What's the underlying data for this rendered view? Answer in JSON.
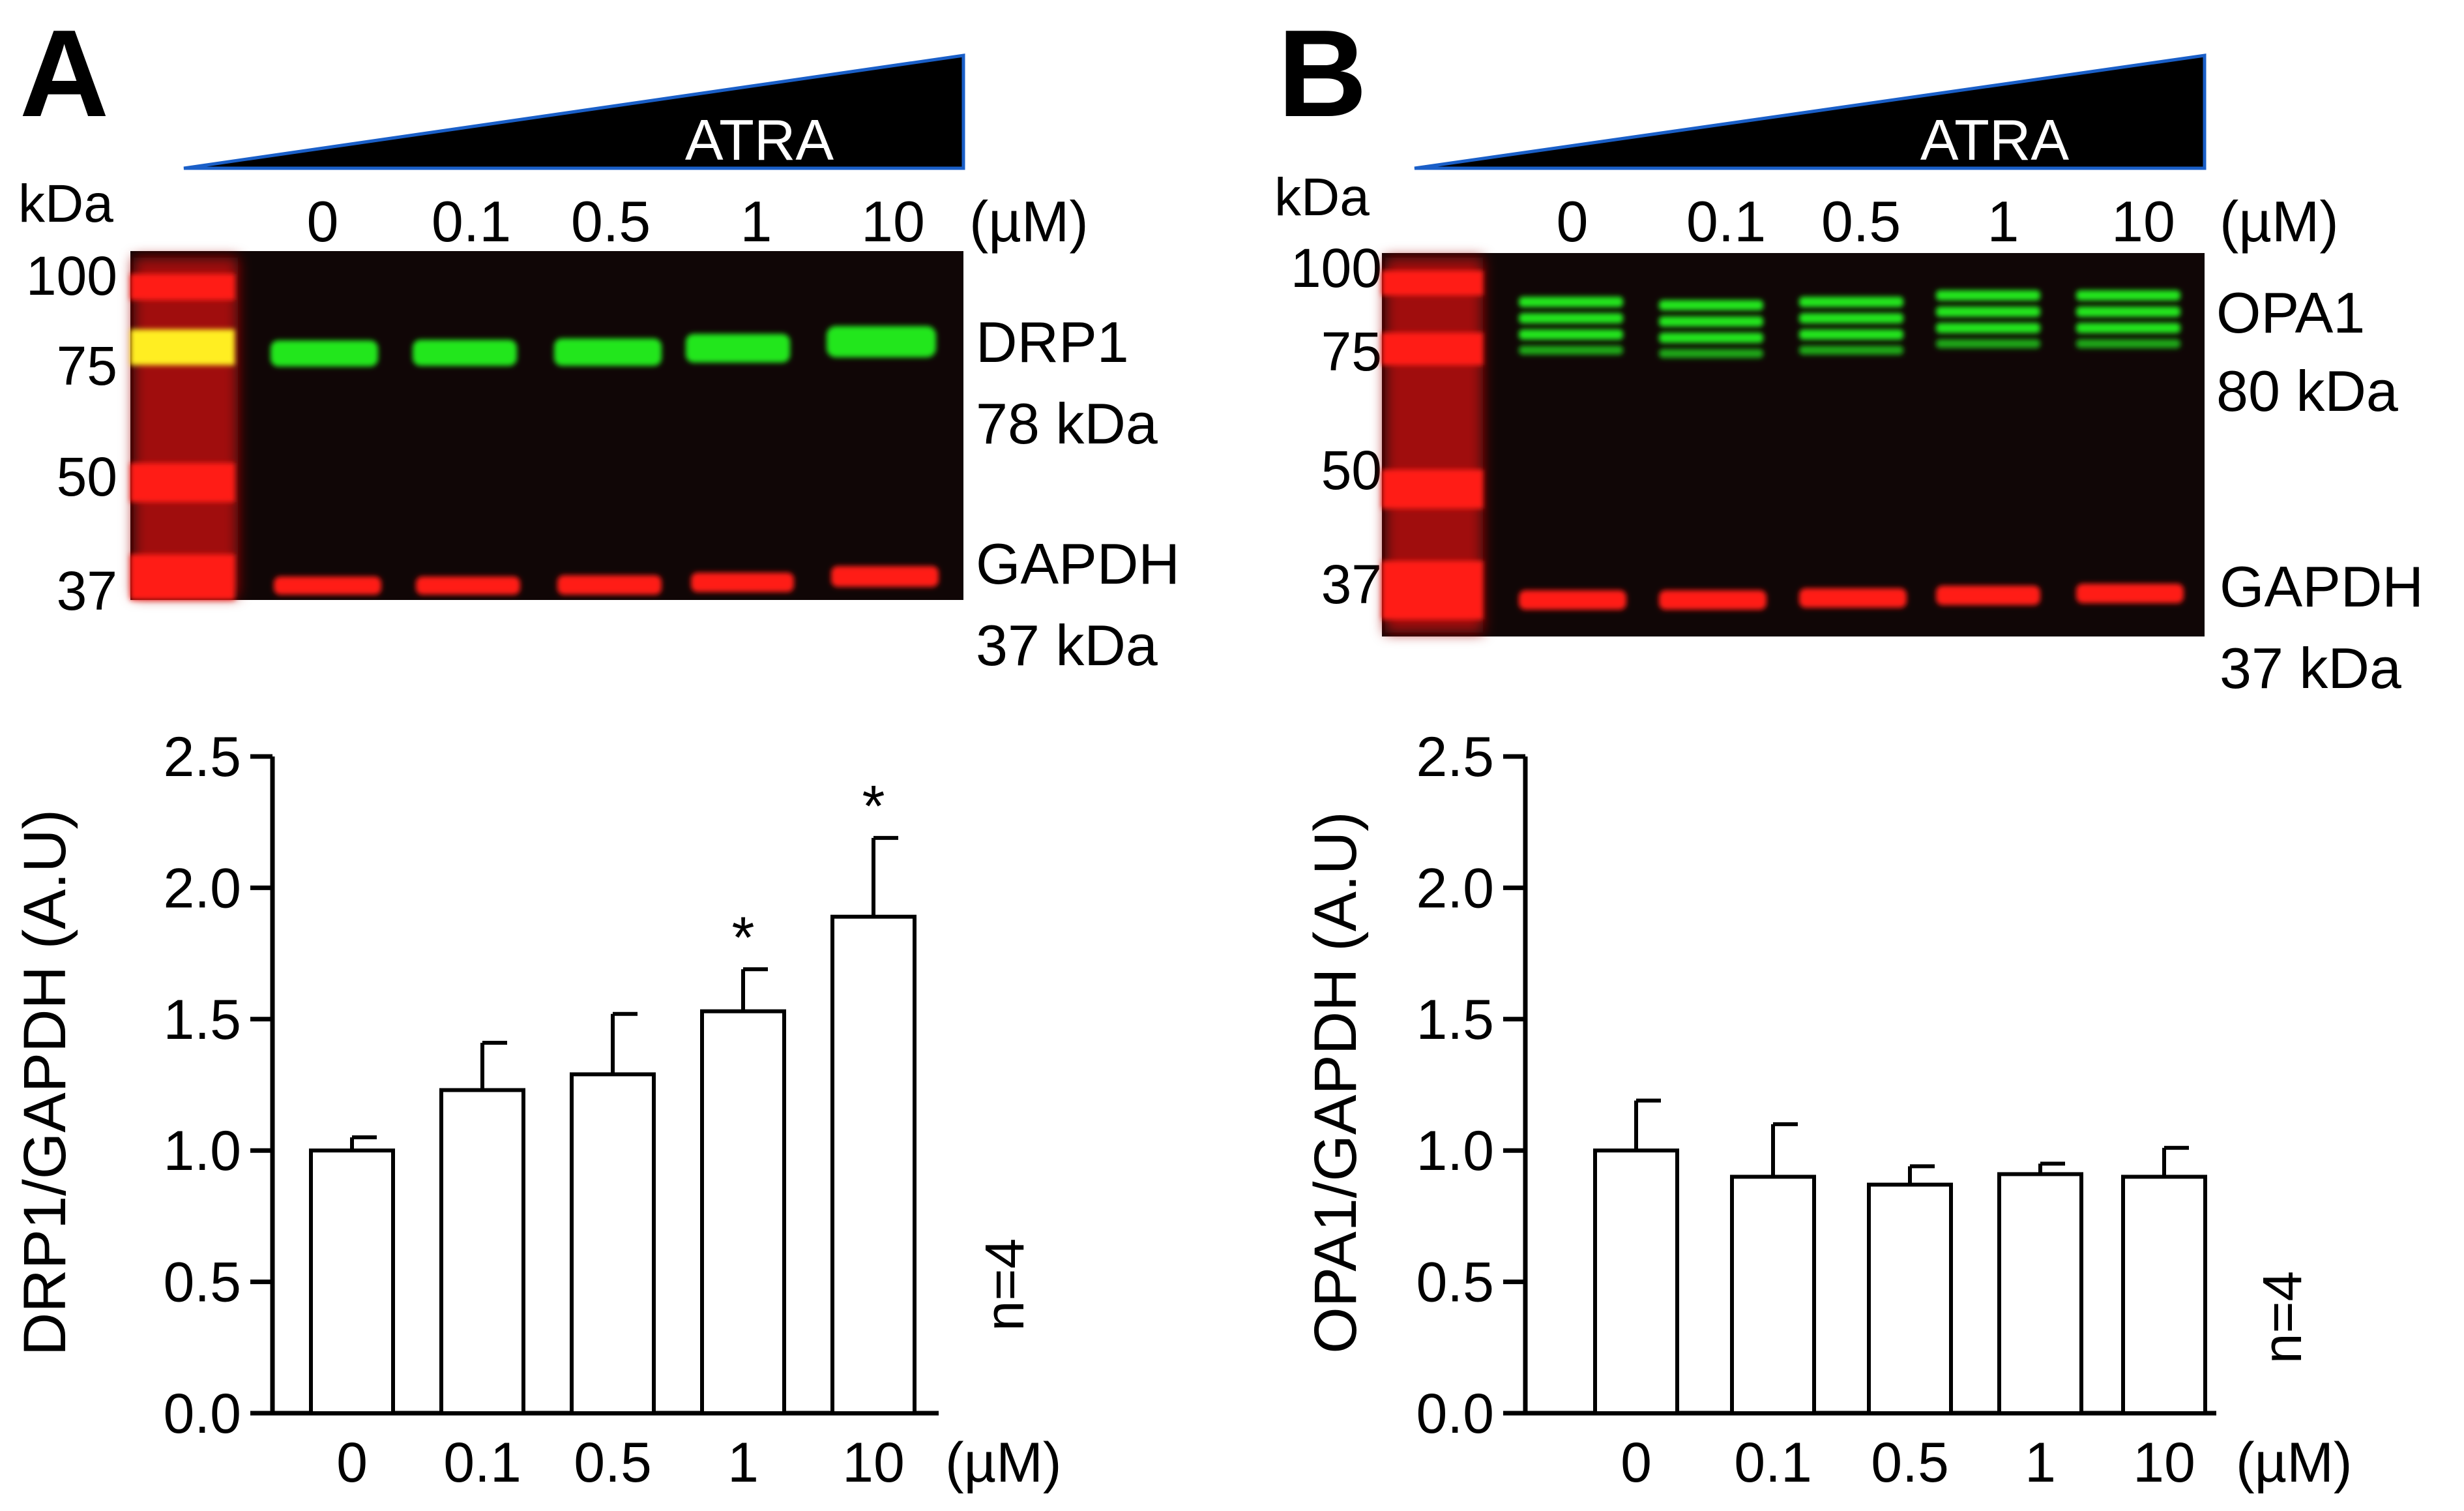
{
  "panels": [
    {
      "letter": "A",
      "treatment": "ATRA",
      "unit": "(µM)",
      "kda_label": "kDa",
      "concentrations": [
        "0",
        "0.1",
        "0.5",
        "1",
        "10"
      ],
      "markers": [
        "100",
        "75",
        "50",
        "37"
      ],
      "target_name": "DRP1",
      "target_size": "78 kDa",
      "loading_name": "GAPDH",
      "loading_size": "37 kDa",
      "n_label": "n=4"
    },
    {
      "letter": "B",
      "treatment": "ATRA",
      "unit": "(µM)",
      "kda_label": "kDa",
      "concentrations": [
        "0",
        "0.1",
        "0.5",
        "1",
        "10"
      ],
      "markers": [
        "100",
        "75",
        "50",
        "37"
      ],
      "target_name": "OPA1",
      "target_size": "80 kDa",
      "loading_name": "GAPDH",
      "loading_size": "37 kDa",
      "n_label": "n=4"
    }
  ],
  "chart_data": [
    {
      "type": "bar",
      "panel": "A",
      "title": "",
      "categories": [
        "0",
        "0.1",
        "0.5",
        "1",
        "10"
      ],
      "values": [
        1.0,
        1.23,
        1.29,
        1.53,
        1.89
      ],
      "errors": [
        0.05,
        0.18,
        0.23,
        0.16,
        0.3
      ],
      "significance": [
        "",
        "",
        "",
        "*",
        "*"
      ],
      "xlabel": "(µM)",
      "ylabel": "DRP1/GAPDH (A.U)",
      "ylim": [
        0,
        2.5
      ],
      "yticks": [
        "0.0",
        "0.5",
        "1.0",
        "1.5",
        "2.0",
        "2.5"
      ],
      "bar_color": "#ffffff",
      "annotation": "n=4"
    },
    {
      "type": "bar",
      "panel": "B",
      "title": "",
      "categories": [
        "0",
        "0.1",
        "0.5",
        "1",
        "10"
      ],
      "values": [
        1.0,
        0.9,
        0.87,
        0.91,
        0.9
      ],
      "errors": [
        0.19,
        0.2,
        0.07,
        0.04,
        0.11
      ],
      "significance": [
        "",
        "",
        "",
        "",
        ""
      ],
      "xlabel": "(µM)",
      "ylabel": "OPA1/GAPDH (A.U)",
      "ylim": [
        0,
        2.5
      ],
      "yticks": [
        "0.0",
        "0.5",
        "1.0",
        "1.5",
        "2.0",
        "2.5"
      ],
      "bar_color": "#ffffff",
      "annotation": "n=4"
    }
  ],
  "colors": {
    "blot_background": "#100606",
    "target_band": "#22e61e",
    "ladder_band": "#ff1a14",
    "loading_band": "#ff1a14",
    "ladder_yellow": "#ffee22",
    "wedge_fill": "#000000",
    "wedge_edge": "#1a5fc8"
  }
}
